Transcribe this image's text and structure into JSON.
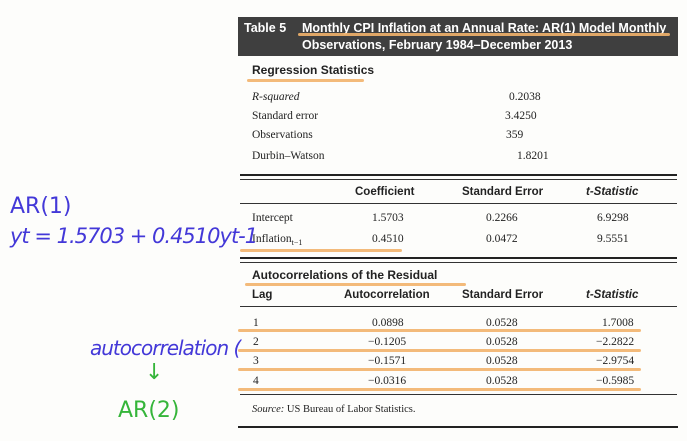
{
  "table": {
    "number": "Table 5",
    "title_line1": "Monthly CPI Inflation at an Annual Rate: AR(1) Model Monthly",
    "title_line2": "Observations, February 1984–December 2013"
  },
  "regression": {
    "heading": "Regression Statistics",
    "rows": [
      {
        "label": "R-squared",
        "value": "0.2038"
      },
      {
        "label": "Standard error",
        "value": "3.4250"
      },
      {
        "label": "Observations",
        "value": "359"
      },
      {
        "label": "Durbin–Watson",
        "value": "1.8201"
      }
    ]
  },
  "coefficients": {
    "headers": [
      "Coefficient",
      "Standard Error",
      "t-Statistic"
    ],
    "rows": [
      {
        "label": "Intercept",
        "coef": "1.5703",
        "se": "0.2266",
        "t": "6.9298"
      },
      {
        "label": "Inflation",
        "label_sub": "t−1",
        "coef": "0.4510",
        "se": "0.0472",
        "t": "9.5551"
      }
    ]
  },
  "autocorr": {
    "heading": "Autocorrelations of the Residual",
    "headers": [
      "Lag",
      "Autocorrelation",
      "Standard Error",
      "t-Statistic"
    ],
    "rows": [
      {
        "lag": "1",
        "ac": "0.0898",
        "se": "0.0528",
        "t": "1.7008"
      },
      {
        "lag": "2",
        "ac": "−0.1205",
        "se": "0.0528",
        "t": "−2.2822"
      },
      {
        "lag": "3",
        "ac": "−0.1571",
        "se": "0.0528",
        "t": "−2.9754"
      },
      {
        "lag": "4",
        "ac": "−0.0316",
        "se": "0.0528",
        "t": "−0.5985"
      }
    ]
  },
  "source": {
    "prefix": "Source:",
    "text": "US Bureau of Labor Statistics."
  },
  "annotations": {
    "ar1_label": "AR(1)",
    "ar1_equation": "yt = 1.5703 + 0.4510yt-1",
    "autocorr_note": "autocorrelation (",
    "arrow": "↓",
    "ar2_label": "AR(2)",
    "ink_blue": "#4338d8",
    "ink_green": "#35b53a",
    "highlight": "#f2b36b"
  }
}
